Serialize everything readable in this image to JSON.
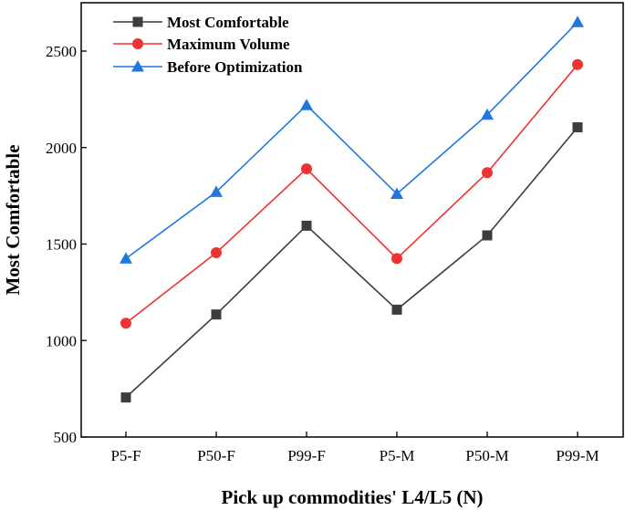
{
  "chart_data": {
    "type": "line",
    "title": "",
    "xlabel": "Pick up commodities' L4/L5 (N)",
    "ylabel": "Most Comfortable",
    "categories": [
      "P5-F",
      "P50-F",
      "P99-F",
      "P5-M",
      "P50-M",
      "P99-M"
    ],
    "ylim": [
      500,
      2700
    ],
    "yticks": [
      500,
      1000,
      1500,
      2000,
      2500
    ],
    "ytick_labels": [
      "500",
      "1000",
      "1500",
      "2000",
      "2500"
    ],
    "grid": false,
    "legend_position": "top-left",
    "series": [
      {
        "name": "Most Comfortable",
        "color": "#3d3d3d",
        "marker": "square",
        "values": [
          705,
          1135,
          1595,
          1160,
          1545,
          2105
        ]
      },
      {
        "name": "Maximum Volume",
        "color": "#ee3333",
        "marker": "circle",
        "values": [
          1090,
          1455,
          1890,
          1425,
          1870,
          2430
        ]
      },
      {
        "name": "Before Optimization",
        "color": "#2277dd",
        "marker": "triangle",
        "values": [
          1425,
          1770,
          2220,
          1760,
          2170,
          2650
        ]
      }
    ]
  }
}
